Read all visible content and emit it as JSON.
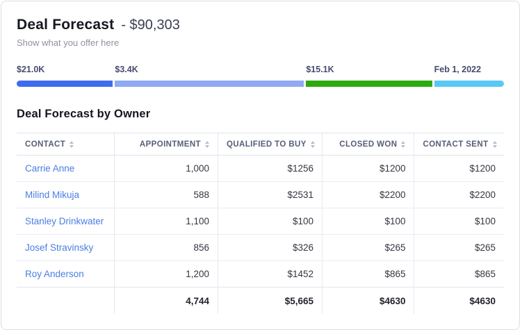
{
  "header": {
    "title": "Deal Forecast",
    "amount": "- $90,303",
    "subtitle": "Show what you offer here"
  },
  "progress": {
    "segments": [
      {
        "label": "$21.0K",
        "color": "#3d6dee",
        "width_pct": 20.0
      },
      {
        "label": "$3.4K",
        "color": "#8fa9f2",
        "width_pct": 39.3
      },
      {
        "label": "$15.1K",
        "color": "#2dab0e",
        "width_pct": 26.2
      },
      {
        "label": "Feb 1, 2022",
        "color": "#5ac8f5",
        "width_pct": 14.5
      }
    ]
  },
  "table": {
    "title": "Deal Forecast by Owner",
    "columns": [
      {
        "label": "CONTACT",
        "align": "left",
        "width_pct": 20.0
      },
      {
        "label": "APPOINTMENT",
        "align": "right",
        "width_pct": 21.3
      },
      {
        "label": "QUALIFIED TO BUY",
        "align": "right",
        "width_pct": 21.4
      },
      {
        "label": "CLOSED WON",
        "align": "right",
        "width_pct": 18.9
      },
      {
        "label": "CONTACT SENT",
        "align": "right",
        "width_pct": 18.4
      }
    ],
    "rows": [
      {
        "contact": "Carrie Anne",
        "values": [
          "1,000",
          "$1256",
          "$1200",
          "$1200"
        ]
      },
      {
        "contact": "Milind Mikuja",
        "values": [
          "588",
          "$2531",
          "$2200",
          "$2200"
        ]
      },
      {
        "contact": "Stanley Drinkwater",
        "values": [
          "1,100",
          "$100",
          "$100",
          "$100"
        ]
      },
      {
        "contact": "Josef Stravinsky",
        "values": [
          "856",
          "$326",
          "$265",
          "$265"
        ]
      },
      {
        "contact": "Roy Anderson",
        "values": [
          "1,200",
          "$1452",
          "$865",
          "$865"
        ]
      }
    ],
    "totals": [
      "",
      "4,744",
      "$5,665",
      "$4630",
      "$4630"
    ]
  },
  "colors": {
    "accent_blue": "#3d6dee",
    "periwinkle": "#8fa9f2",
    "green": "#2dab0e",
    "cyan": "#5ac8f5",
    "link_blue": "#4a7de4"
  }
}
